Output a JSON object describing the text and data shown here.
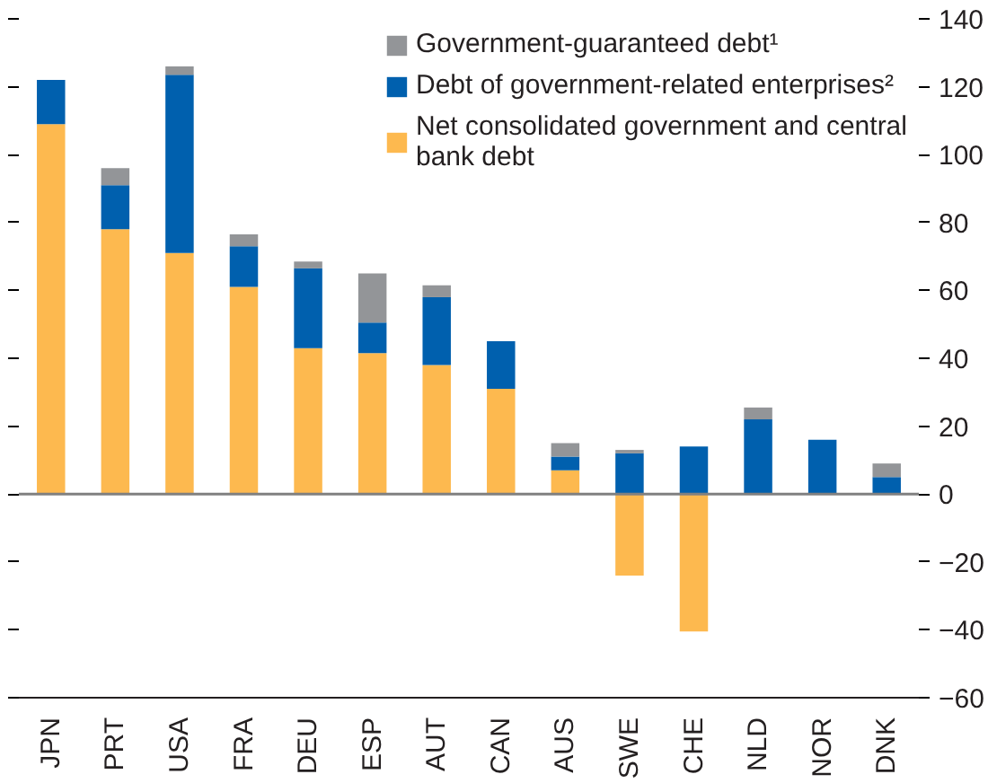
{
  "chart_data": {
    "type": "bar",
    "stacked": true,
    "categories": [
      "JPN",
      "PRT",
      "USA",
      "FRA",
      "DEU",
      "ESP",
      "AUT",
      "CAN",
      "AUS",
      "SWE",
      "CHE",
      "NLD",
      "NOR",
      "DNK"
    ],
    "series": [
      {
        "name": "Net consolidated government and central\nbank debt",
        "color": "#fdb94f",
        "values": [
          109,
          78,
          71,
          61,
          43,
          41.5,
          38,
          31,
          7,
          -24,
          -40.5,
          0,
          0,
          0
        ]
      },
      {
        "name": "Debt of government-related enterprises²",
        "color": "#0060ae",
        "values": [
          13,
          13,
          52.5,
          12,
          23.5,
          9,
          20,
          14,
          4,
          12,
          14,
          22,
          16,
          5
        ]
      },
      {
        "name": "Government-guaranteed debt¹",
        "color": "#939598",
        "values": [
          0,
          5,
          2.5,
          3.5,
          2,
          14.5,
          3.5,
          0,
          4,
          1,
          0,
          3.5,
          0,
          4
        ]
      }
    ],
    "ylim": [
      -60,
      140
    ],
    "yticks": [
      -60,
      -40,
      -20,
      0,
      20,
      40,
      60,
      80,
      100,
      120,
      140
    ],
    "ref_lines": [
      {
        "axis": "y",
        "value": 0,
        "color": "#808080"
      }
    ],
    "grid": false,
    "legend": "top right"
  }
}
